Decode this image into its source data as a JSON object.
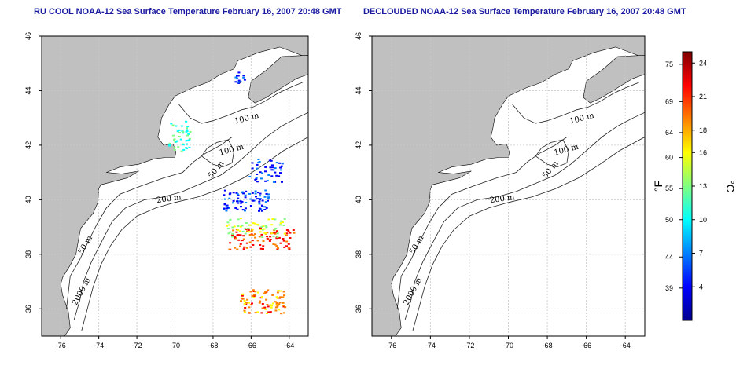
{
  "left_panel": {
    "title": "RU COOL NOAA-12 Sea Surface Temperature February 16, 2007 20:48 GMT",
    "contour_labels": [
      "100 m",
      "100 m",
      "50 m",
      "200 m",
      "50 m",
      "2000 m"
    ]
  },
  "right_panel": {
    "title": "DECLOUDED NOAA-12 Sea Surface Temperature February 16, 2007 20:48 GMT",
    "contour_labels": [
      "100 m",
      "100 m",
      "50 m",
      "200 m",
      "50 m",
      "2000 m"
    ]
  },
  "axes": {
    "x_ticks": [
      -76,
      -74,
      -72,
      -70,
      -68,
      -66,
      -64
    ],
    "y_ticks": [
      36,
      38,
      40,
      42,
      44,
      46
    ],
    "xlim": [
      -77,
      -63
    ],
    "ylim": [
      35,
      46
    ]
  },
  "colorbar": {
    "fahrenheit_ticks": [
      75,
      69,
      64,
      60,
      55,
      50,
      44,
      39
    ],
    "celsius_ticks": [
      24,
      21,
      18,
      16,
      13,
      10,
      7,
      4
    ],
    "fahrenheit_label": "°F",
    "celsius_label": "°C",
    "range_c": [
      1,
      25
    ],
    "colors": [
      "#00008f",
      "#0000ff",
      "#0080ff",
      "#00ffff",
      "#80ff80",
      "#ffff00",
      "#ff8000",
      "#ff0000",
      "#800000"
    ]
  },
  "colors": {
    "land": "#c0c0c0",
    "water": "#ffffff",
    "title": "#1a1aa0",
    "grid": "#c8c8c8"
  }
}
